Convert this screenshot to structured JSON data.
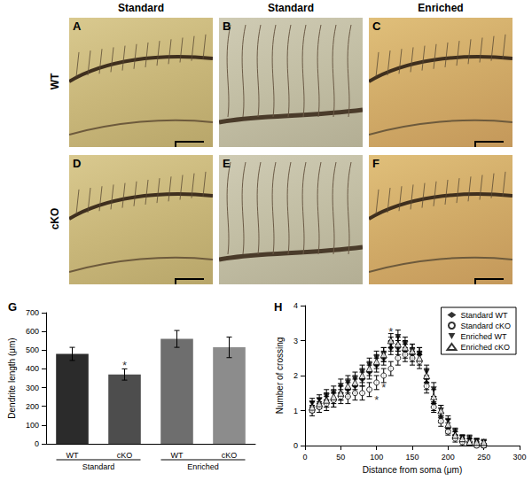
{
  "panels": {
    "columns": [
      "Standard",
      "Standard",
      "Enriched"
    ],
    "rows": [
      "WT",
      "cKO"
    ],
    "letters": [
      [
        "A",
        "B",
        "C"
      ],
      [
        "D",
        "E",
        "F"
      ]
    ]
  },
  "chart_data": [
    {
      "label": "G",
      "type": "bar",
      "y_label": "Dendrite length (μm)",
      "categories": [
        "WT",
        "cKO",
        "WT",
        "cKO"
      ],
      "groups": [
        {
          "label": "Standard",
          "from": 0,
          "to": 1
        },
        {
          "label": "Enriched",
          "from": 2,
          "to": 3
        }
      ],
      "values": [
        480,
        370,
        560,
        515
      ],
      "errors": [
        35,
        30,
        45,
        55
      ],
      "colors": [
        "#2b2b2b",
        "#4d4d4d",
        "#6e6e6e",
        "#8c8c8c"
      ],
      "ylim": [
        0,
        700
      ],
      "yticks": [
        0,
        100,
        200,
        300,
        400,
        500,
        600,
        700
      ],
      "grid": false,
      "annotations": [
        {
          "text": "*",
          "x": 1,
          "y": 420
        }
      ]
    },
    {
      "label": "H",
      "type": "scatter",
      "x_label": "Distance from soma (μm)",
      "y_label": "Number of crossing",
      "x": [
        10,
        20,
        30,
        40,
        50,
        60,
        70,
        80,
        90,
        100,
        110,
        120,
        130,
        140,
        150,
        160,
        170,
        180,
        190,
        200,
        210,
        220,
        230,
        240,
        250
      ],
      "series": [
        {
          "name": "Standard WT",
          "color": "#000000",
          "marker": "diamond",
          "values": [
            1.1,
            1.2,
            1.3,
            1.3,
            1.5,
            1.6,
            1.7,
            1.9,
            2.1,
            2.3,
            2.5,
            2.8,
            2.8,
            2.7,
            2.6,
            2.6,
            1.8,
            1.2,
            0.8,
            0.5,
            0.3,
            0.2,
            0.1,
            0.1,
            0.0
          ],
          "errors": [
            0.15,
            0.15,
            0.2,
            0.2,
            0.2,
            0.2,
            0.2,
            0.2,
            0.2,
            0.2,
            0.2,
            0.2,
            0.2,
            0.2,
            0.2,
            0.2,
            0.2,
            0.2,
            0.15,
            0.15,
            0.1,
            0.1,
            0.1,
            0.1,
            0.05
          ]
        },
        {
          "name": "Standard cKO",
          "color": "#000000",
          "marker": "circle-open",
          "values": [
            1.0,
            1.1,
            1.2,
            1.3,
            1.4,
            1.4,
            1.5,
            1.5,
            1.6,
            1.8,
            2.0,
            2.2,
            2.5,
            2.6,
            2.5,
            2.4,
            1.7,
            1.1,
            0.7,
            0.4,
            0.2,
            0.1,
            0.1,
            0.0,
            0.0
          ],
          "errors": [
            0.15,
            0.15,
            0.2,
            0.2,
            0.2,
            0.2,
            0.2,
            0.2,
            0.2,
            0.2,
            0.2,
            0.2,
            0.2,
            0.2,
            0.2,
            0.2,
            0.2,
            0.15,
            0.15,
            0.1,
            0.1,
            0.1,
            0.1,
            0.05,
            0.05
          ]
        },
        {
          "name": "Enriched WT",
          "color": "#000000",
          "marker": "triangle-down",
          "values": [
            1.2,
            1.3,
            1.4,
            1.5,
            1.7,
            1.8,
            1.9,
            2.1,
            2.3,
            2.5,
            2.6,
            2.9,
            3.1,
            2.9,
            2.7,
            2.6,
            2.1,
            1.6,
            1.0,
            0.7,
            0.4,
            0.2,
            0.2,
            0.1,
            0.1
          ],
          "errors": [
            0.15,
            0.15,
            0.2,
            0.2,
            0.2,
            0.2,
            0.2,
            0.2,
            0.2,
            0.2,
            0.2,
            0.2,
            0.2,
            0.2,
            0.2,
            0.2,
            0.2,
            0.2,
            0.15,
            0.15,
            0.1,
            0.1,
            0.1,
            0.1,
            0.05
          ]
        },
        {
          "name": "Enriched cKO",
          "color": "#000000",
          "marker": "triangle-open",
          "values": [
            1.1,
            1.2,
            1.3,
            1.4,
            1.5,
            1.7,
            1.8,
            2.0,
            2.2,
            2.4,
            2.6,
            3.0,
            2.9,
            2.8,
            2.7,
            2.5,
            2.0,
            1.4,
            1.0,
            0.6,
            0.3,
            0.2,
            0.1,
            0.1,
            0.1
          ],
          "errors": [
            0.15,
            0.15,
            0.2,
            0.2,
            0.2,
            0.2,
            0.2,
            0.2,
            0.2,
            0.2,
            0.2,
            0.2,
            0.2,
            0.2,
            0.2,
            0.2,
            0.2,
            0.2,
            0.15,
            0.15,
            0.1,
            0.1,
            0.1,
            0.1,
            0.05
          ]
        }
      ],
      "xlim": [
        0,
        300
      ],
      "xticks": [
        0,
        50,
        100,
        150,
        200,
        250,
        300
      ],
      "ylim": [
        0,
        4
      ],
      "yticks": [
        0,
        1,
        2,
        3,
        4
      ],
      "grid": false,
      "legend": "upper right",
      "annotations": [
        {
          "text": "*",
          "x": 100,
          "y": 1.3
        },
        {
          "text": "*",
          "x": 110,
          "y": 1.65
        },
        {
          "text": "*",
          "x": 120,
          "y": 3.25
        }
      ]
    }
  ]
}
